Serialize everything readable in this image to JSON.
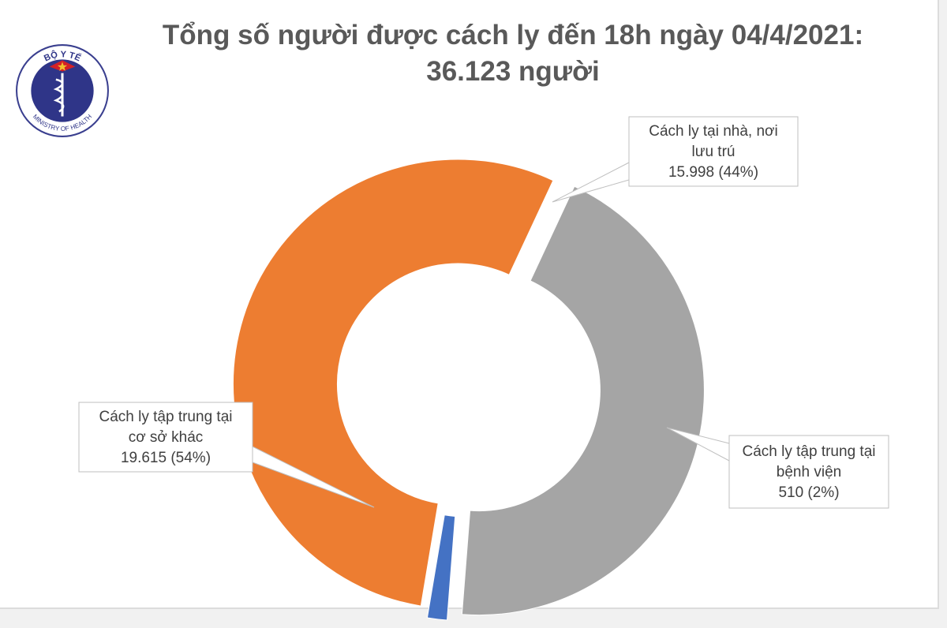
{
  "header": {
    "title_line1": "Tổng số người được cách ly đến 18h ngày 04/4/2021:",
    "title_line2": "36.123 người"
  },
  "logo": {
    "icon": "ministry-of-health-emblem",
    "text_top": "BỘ Y TẾ",
    "text_bottom": "MINISTRY OF HEALTH",
    "colors": {
      "ring": "#3a3f8f",
      "inner": "#2f3588",
      "star": "#f2c12e",
      "flag": "#d32027"
    }
  },
  "chart_data": {
    "type": "pie",
    "variant": "donut",
    "title": "Tổng số người được cách ly đến 18h ngày 04/4/2021: 36.123 người",
    "total": 36123,
    "slices": [
      {
        "label_lines": [
          "Cách ly tại nhà, nơi",
          "lưu trú",
          "15.998 (44%)"
        ],
        "value": 15998,
        "percent": 44,
        "color": "#a5a5a5"
      },
      {
        "label_lines": [
          "Cách ly tập trung tại",
          "bệnh viện",
          "510 (2%)"
        ],
        "value": 510,
        "percent": 2,
        "color": "#4472c4"
      },
      {
        "label_lines": [
          "Cách ly tập trung tại",
          "cơ sở khác",
          "19.615 (54%)"
        ],
        "value": 19615,
        "percent": 54,
        "color": "#ed7d31"
      }
    ],
    "legend": "none"
  }
}
